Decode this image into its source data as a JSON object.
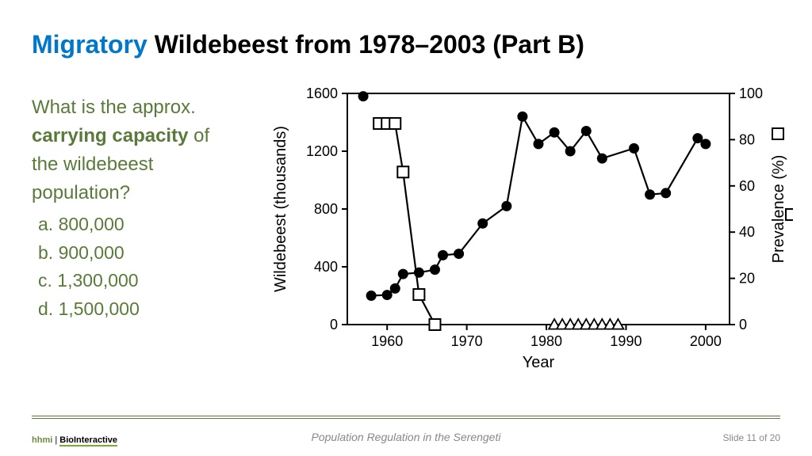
{
  "title": {
    "accent": "Migratory",
    "rest": " Wildebeest from 1978–2003 (Part B)"
  },
  "question": {
    "line1": "What is the approx.",
    "bold": "carrying capacity",
    "line2_rest": " of",
    "line3": "the wildebeest",
    "line4": "population?"
  },
  "choices": {
    "a": "a.  800,000",
    "b": "b.  900,000",
    "c": "c.  1,300,000",
    "d": "d.  1,500,000"
  },
  "chart": {
    "title": "",
    "xlabel": "Year",
    "ylabel_left": "Wildebeest (thousands)",
    "ylabel_right": "Prevalence (%)",
    "xlim": [
      1955,
      2003
    ],
    "ylim_left": [
      0,
      1600
    ],
    "ylim_right": [
      0,
      100
    ],
    "xticks": [
      1960,
      1970,
      1980,
      1990,
      2000
    ],
    "yticks_left": [
      0,
      400,
      800,
      1200,
      1600
    ],
    "yticks_right": [
      0,
      20,
      40,
      60,
      80,
      100
    ],
    "axis_color": "#000",
    "grid": false,
    "line_color": "#000",
    "line_width": 2.2,
    "label_fontsize": 20,
    "tick_fontsize": 18,
    "wildebeest_series": {
      "symbol": "filled-circle",
      "marker_size": 6.5,
      "color": "#000",
      "points": [
        [
          1957,
          1580
        ],
        [
          1958,
          200
        ],
        [
          1960,
          205
        ],
        [
          1961,
          250
        ],
        [
          1962,
          350
        ],
        [
          1964,
          360
        ],
        [
          1966,
          380
        ],
        [
          1967,
          480
        ],
        [
          1969,
          490
        ],
        [
          1972,
          700
        ],
        [
          1975,
          820
        ],
        [
          1977,
          1440
        ],
        [
          1979,
          1250
        ],
        [
          1981,
          1330
        ],
        [
          1983,
          1200
        ],
        [
          1985,
          1340
        ],
        [
          1987,
          1150
        ],
        [
          1991,
          1220
        ],
        [
          1993,
          900
        ],
        [
          1995,
          910
        ],
        [
          1999,
          1290
        ],
        [
          2000,
          1250
        ]
      ]
    },
    "prevalence_series": {
      "symbol": "open-square",
      "marker_size": 7,
      "color": "#000",
      "points_pct": [
        [
          1959,
          87
        ],
        [
          1960,
          87
        ],
        [
          1961,
          87
        ],
        [
          1962,
          66
        ],
        [
          1964,
          13
        ],
        [
          1966,
          0
        ]
      ]
    },
    "triangle_series": {
      "symbol": "open-triangle",
      "marker_size": 7,
      "color": "#000",
      "points_pct": [
        [
          1981,
          0
        ],
        [
          1982,
          0
        ],
        [
          1983,
          0
        ],
        [
          1984,
          0
        ],
        [
          1985,
          0
        ],
        [
          1986,
          0
        ],
        [
          1987,
          0
        ],
        [
          1988,
          0
        ],
        [
          1989,
          0
        ]
      ]
    },
    "legend_markers": {
      "left_indicator_x": 1956,
      "left_indicator_y": 1580,
      "right_indicator": "□"
    }
  },
  "footer": {
    "logo_h": "hhmi",
    "logo_b": "BioInteractive",
    "center": "Population Regulation in the Serengeti",
    "right": "Slide 11 of 20"
  }
}
